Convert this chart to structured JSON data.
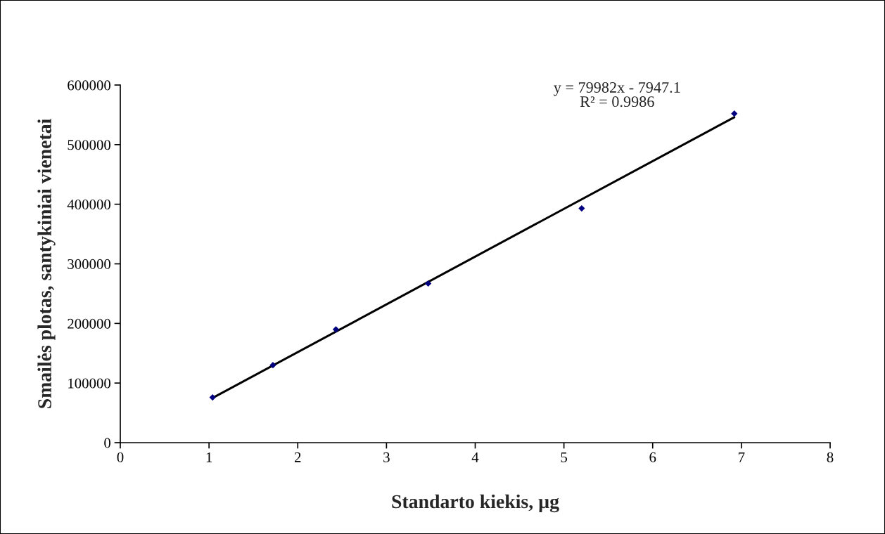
{
  "chart_data": {
    "type": "scatter",
    "xlabel": "Standarto kiekis, µg",
    "ylabel": "Smailės plotas, santykiniai vienetai",
    "x": [
      1.04,
      1.72,
      2.43,
      3.47,
      5.2,
      6.92
    ],
    "series": [
      {
        "color": "#000080",
        "marker": "diamond",
        "values": [
          76000,
          130000,
          190000,
          267000,
          393000,
          552000
        ]
      },
      {
        "type": "line",
        "color": "#000000",
        "marker": "none",
        "line_style": "solid",
        "x": [
          1.04,
          6.92
        ],
        "values": [
          75000,
          546000
        ]
      }
    ],
    "annotations": [
      "y = 79982x - 7947.1\nR² = 0.9986"
    ],
    "xlim": [
      0,
      8
    ],
    "xticks": [
      0,
      1,
      2,
      3,
      4,
      5,
      6,
      7,
      8
    ],
    "ylim": [
      0,
      600000
    ],
    "yticks": [
      0,
      100000,
      200000,
      300000,
      400000,
      500000,
      600000
    ],
    "grid": false,
    "legend": false
  }
}
